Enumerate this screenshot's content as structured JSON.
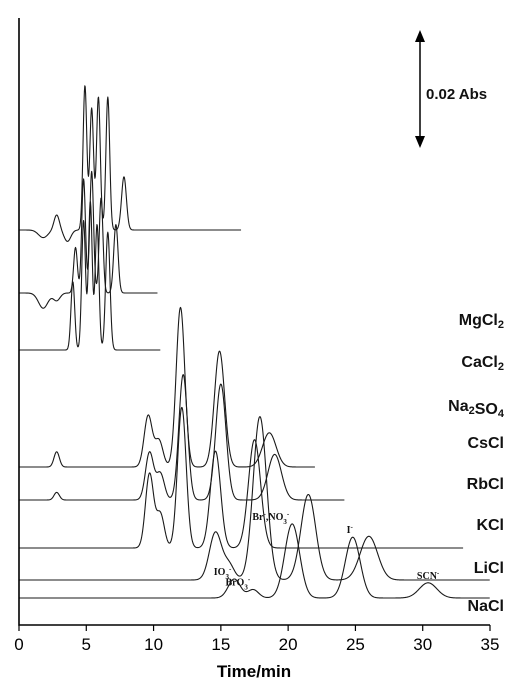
{
  "chart_data": {
    "type": "line",
    "xlabel": "Time/min",
    "x_ticks": [
      0,
      5,
      10,
      15,
      20,
      25,
      30,
      35
    ],
    "xlim": [
      0,
      35
    ],
    "scale_bar_label": "0.02 Abs",
    "series": [
      {
        "name": "NaCl",
        "baseline": 0,
        "end_x": 35,
        "peaks": [
          {
            "x": 16.0,
            "h": 0.5,
            "w": 0.45,
            "label": "IO3-"
          },
          {
            "x": 17.4,
            "h": 0.22,
            "w": 0.4,
            "label": "BrO3-"
          },
          {
            "x": 20.3,
            "h": 1.95,
            "w": 0.55,
            "label": "Br-,NO3-"
          },
          {
            "x": 24.8,
            "h": 1.6,
            "w": 0.55,
            "label": "I-"
          },
          {
            "x": 30.4,
            "h": 0.4,
            "w": 0.65,
            "label": "SCN-"
          }
        ]
      },
      {
        "name": "LiCl",
        "baseline": 0,
        "end_x": 35,
        "peaks": [
          {
            "x": 14.6,
            "h": 1.25,
            "w": 0.45
          },
          {
            "x": 15.6,
            "h": 0.4,
            "w": 0.4
          },
          {
            "x": 17.9,
            "h": 4.3,
            "w": 0.5
          },
          {
            "x": 21.5,
            "h": 2.25,
            "w": 0.55
          },
          {
            "x": 26.0,
            "h": 1.15,
            "w": 0.65
          }
        ]
      },
      {
        "name": "KCl",
        "baseline": 0,
        "end_x": 33,
        "peaks": [
          {
            "x": 9.7,
            "h": 1.95,
            "w": 0.3
          },
          {
            "x": 10.5,
            "h": 0.9,
            "w": 0.3
          },
          {
            "x": 12.1,
            "h": 3.7,
            "w": 0.32
          },
          {
            "x": 14.6,
            "h": 2.55,
            "w": 0.38
          },
          {
            "x": 17.5,
            "h": 2.85,
            "w": 0.45
          }
        ]
      },
      {
        "name": "RbCl",
        "baseline": 0,
        "end_x": 24.2,
        "peaks": [
          {
            "x": 2.8,
            "h": 0.2,
            "w": 0.2
          },
          {
            "x": 9.7,
            "h": 1.25,
            "w": 0.3
          },
          {
            "x": 10.5,
            "h": 0.7,
            "w": 0.3
          },
          {
            "x": 12.2,
            "h": 3.3,
            "w": 0.32
          },
          {
            "x": 15.0,
            "h": 3.05,
            "w": 0.38
          },
          {
            "x": 19.0,
            "h": 1.2,
            "w": 0.5
          }
        ]
      },
      {
        "name": "CsCl",
        "baseline": 0,
        "end_x": 22,
        "peaks": [
          {
            "x": 2.8,
            "h": 0.4,
            "w": 0.2
          },
          {
            "x": 9.6,
            "h": 1.35,
            "w": 0.3
          },
          {
            "x": 10.4,
            "h": 0.7,
            "w": 0.3
          },
          {
            "x": 12.0,
            "h": 4.2,
            "w": 0.32
          },
          {
            "x": 14.9,
            "h": 3.05,
            "w": 0.38
          },
          {
            "x": 18.6,
            "h": 0.9,
            "w": 0.5
          }
        ]
      },
      {
        "name": "Na2SO4",
        "baseline": 0,
        "end_x": 10.5,
        "peaks": [
          {
            "x": 4.0,
            "h": 1.8,
            "w": 0.14
          },
          {
            "x": 4.8,
            "h": 3.4,
            "w": 0.14
          },
          {
            "x": 5.3,
            "h": 3.9,
            "w": 0.14
          },
          {
            "x": 5.8,
            "h": 3.3,
            "w": 0.14
          },
          {
            "x": 6.6,
            "h": 3.1,
            "w": 0.16
          }
        ]
      },
      {
        "name": "CaCl2",
        "baseline": 0,
        "end_x": 10.3,
        "peaks": [
          {
            "x": 1.8,
            "h": -0.4,
            "w": 0.35
          },
          {
            "x": 2.8,
            "h": -0.2,
            "w": 0.25
          },
          {
            "x": 4.2,
            "h": 1.2,
            "w": 0.14
          },
          {
            "x": 4.8,
            "h": 3.0,
            "w": 0.14
          },
          {
            "x": 5.4,
            "h": 3.2,
            "w": 0.14
          },
          {
            "x": 6.1,
            "h": 2.5,
            "w": 0.14
          },
          {
            "x": 7.2,
            "h": 1.8,
            "w": 0.16
          }
        ]
      },
      {
        "name": "MgCl2",
        "baseline": 0,
        "end_x": 16.5,
        "peaks": [
          {
            "x": 1.8,
            "h": -0.2,
            "w": 0.35
          },
          {
            "x": 2.8,
            "h": 0.4,
            "w": 0.2
          },
          {
            "x": 3.6,
            "h": -0.3,
            "w": 0.25
          },
          {
            "x": 4.9,
            "h": 3.8,
            "w": 0.14
          },
          {
            "x": 5.4,
            "h": 3.2,
            "w": 0.14
          },
          {
            "x": 5.9,
            "h": 3.5,
            "w": 0.14
          },
          {
            "x": 6.6,
            "h": 3.5,
            "w": 0.14
          },
          {
            "x": 7.8,
            "h": 1.4,
            "w": 0.18
          }
        ]
      }
    ]
  }
}
